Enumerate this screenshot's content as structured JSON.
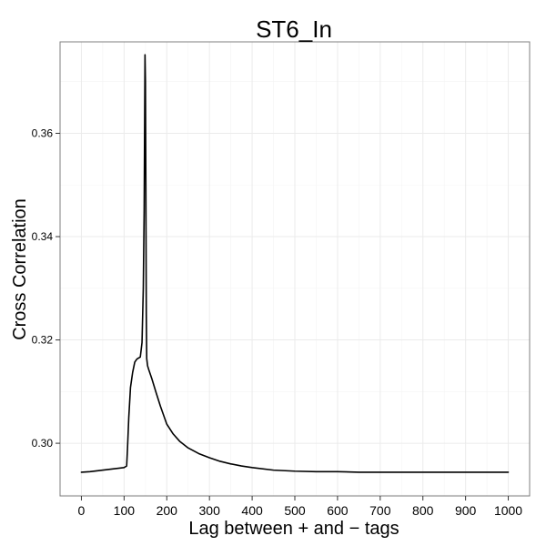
{
  "chart_data": {
    "type": "line",
    "title": "ST6_In",
    "xlabel": "Lag between + and − tags",
    "ylabel": "Cross Correlation",
    "xlim": [
      -50,
      1050
    ],
    "ylim": [
      0.2898,
      0.3777
    ],
    "grid": true,
    "legend": "none",
    "x_ticks": [
      0,
      100,
      200,
      300,
      400,
      500,
      600,
      700,
      800,
      900,
      1000
    ],
    "x_tick_labels": [
      "0",
      "100",
      "200",
      "300",
      "400",
      "500",
      "600",
      "700",
      "800",
      "900",
      "1000"
    ],
    "y_ticks": [
      0.3,
      0.32,
      0.34,
      0.36
    ],
    "y_tick_labels": [
      "0.30",
      "0.32",
      "0.34",
      "0.36"
    ],
    "series": [
      {
        "color": "#000000",
        "x": [
          0,
          20,
          40,
          60,
          80,
          100,
          106,
          108,
          111,
          115,
          120,
          125,
          130,
          138,
          142,
          145,
          147,
          148,
          149,
          150,
          151,
          152,
          153,
          155,
          158,
          165,
          175,
          185,
          200,
          215,
          230,
          250,
          275,
          300,
          325,
          350,
          375,
          400,
          450,
          500,
          550,
          600,
          650,
          700,
          750,
          800,
          850,
          900,
          950,
          1000
        ],
        "values": [
          0.2944,
          0.2945,
          0.2947,
          0.2949,
          0.2951,
          0.2953,
          0.2956,
          0.299,
          0.305,
          0.3108,
          0.3137,
          0.3157,
          0.3163,
          0.3167,
          0.3195,
          0.33,
          0.345,
          0.36,
          0.3752,
          0.37,
          0.35,
          0.325,
          0.3164,
          0.315,
          0.3142,
          0.3125,
          0.3098,
          0.3072,
          0.3037,
          0.3018,
          0.3004,
          0.2991,
          0.298,
          0.2972,
          0.2965,
          0.296,
          0.2956,
          0.2953,
          0.2948,
          0.2946,
          0.2945,
          0.2945,
          0.2944,
          0.2944,
          0.2944,
          0.2944,
          0.2944,
          0.2944,
          0.2944,
          0.2944
        ]
      }
    ]
  }
}
